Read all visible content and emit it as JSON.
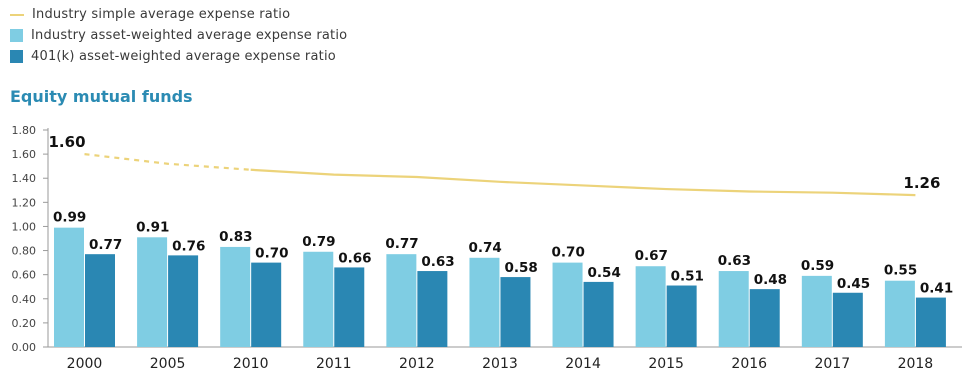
{
  "legend": {
    "items": [
      {
        "label": "Industry simple average expense ratio",
        "color": "#ecd37a",
        "kind": "line"
      },
      {
        "label": "Industry asset-weighted average expense ratio",
        "color": "#7fcde3",
        "kind": "box"
      },
      {
        "label": "401(k) asset-weighted average expense ratio",
        "color": "#2a87b3",
        "kind": "box"
      }
    ]
  },
  "chart_data": {
    "type": "bar",
    "title": "Equity mutual funds",
    "categories": [
      "2000",
      "2005",
      "2010",
      "2011",
      "2012",
      "2013",
      "2014",
      "2015",
      "2016",
      "2017",
      "2018"
    ],
    "series": [
      {
        "name": "Industry asset-weighted average expense ratio",
        "type": "bar",
        "color": "#7fcde3",
        "values": [
          0.99,
          0.91,
          0.83,
          0.79,
          0.77,
          0.74,
          0.7,
          0.67,
          0.63,
          0.59,
          0.55
        ]
      },
      {
        "name": "401(k) asset-weighted average expense ratio",
        "type": "bar",
        "color": "#2a87b3",
        "values": [
          0.77,
          0.76,
          0.7,
          0.66,
          0.63,
          0.58,
          0.54,
          0.51,
          0.48,
          0.45,
          0.41
        ]
      },
      {
        "name": "Industry simple average expense ratio",
        "type": "line",
        "color": "#ecd37a",
        "values": [
          1.6,
          1.52,
          1.47,
          1.43,
          1.41,
          1.37,
          1.34,
          1.31,
          1.29,
          1.28,
          1.26
        ],
        "dashed_until_index": 2,
        "labeled_values": [
          "1.60",
          "",
          "",
          "",
          "",
          "",
          "",
          "",
          "",
          "",
          "1.26"
        ]
      }
    ],
    "ylim": [
      0,
      1.8
    ],
    "yticks": [
      "0.00",
      "0.20",
      "0.40",
      "0.60",
      "0.80",
      "1.00",
      "1.20",
      "1.40",
      "1.60",
      "1.80"
    ],
    "bar_labels_a": [
      "0.99",
      "0.91",
      "0.83",
      "0.79",
      "0.77",
      "0.74",
      "0.70",
      "0.67",
      "0.63",
      "0.59",
      "0.55"
    ],
    "bar_labels_b": [
      "0.77",
      "0.76",
      "0.70",
      "0.66",
      "0.63",
      "0.58",
      "0.54",
      "0.51",
      "0.48",
      "0.45",
      "0.41"
    ],
    "grid": false,
    "legend_position": "top-left"
  }
}
